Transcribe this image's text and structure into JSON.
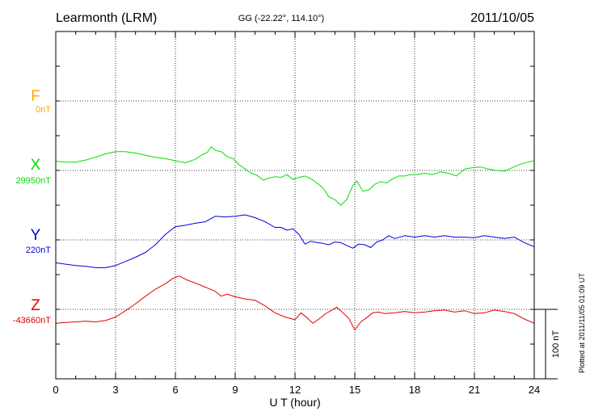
{
  "header": {
    "station": "Learmonth (LRM)",
    "coordinates": "GG (-22.22°, 114.10°)",
    "date": "2011/10/05"
  },
  "scale_bar_label": "100 nT",
  "plotted_note": "Plotted at 2011/11/05 01:09 UT",
  "chart_data": {
    "type": "line",
    "title": "",
    "xlabel": "U T (hour)",
    "ylabel": "",
    "xlim": [
      0,
      24
    ],
    "xticks": [
      0,
      3,
      6,
      9,
      12,
      15,
      18,
      21,
      24
    ],
    "xtick_labels": [
      "0",
      "3",
      "6",
      "9",
      "12",
      "15",
      "18",
      "21",
      "24"
    ],
    "grid": true,
    "nt_per_division": 100,
    "series": [
      {
        "name": "F",
        "baseline": "0nT",
        "color": "#ffa500",
        "baseline_nT": 0,
        "x": [],
        "values": []
      },
      {
        "name": "X",
        "baseline": "29950nT",
        "color": "#00e000",
        "baseline_nT": 29950,
        "x": [
          0,
          0.5,
          1,
          1.5,
          2,
          2.5,
          3,
          3.5,
          4,
          4.5,
          5,
          5.5,
          6,
          6.5,
          7,
          7.3,
          7.6,
          7.8,
          8,
          8.3,
          8.6,
          8.9,
          9.2,
          9.5,
          9.8,
          10.1,
          10.4,
          10.7,
          11,
          11.3,
          11.6,
          11.9,
          12.2,
          12.5,
          12.8,
          13.1,
          13.4,
          13.7,
          14,
          14.3,
          14.6,
          14.9,
          15.1,
          15.4,
          15.7,
          16,
          16.3,
          16.6,
          16.9,
          17.2,
          17.5,
          17.8,
          18.1,
          18.5,
          18.9,
          19.3,
          19.7,
          20.1,
          20.5,
          20.9,
          21.3,
          21.7,
          22.1,
          22.5,
          22.9,
          23.3,
          23.7,
          24
        ],
        "values": [
          13,
          12,
          12,
          15,
          19,
          24,
          27,
          27,
          25,
          22,
          19,
          17,
          14,
          11,
          16,
          22,
          26,
          34,
          29,
          27,
          20,
          17,
          8,
          2,
          -4,
          -7,
          -14,
          -11,
          -9,
          -10,
          -6,
          -13,
          -10,
          -8,
          -12,
          -18,
          -25,
          -38,
          -42,
          -50,
          -42,
          -22,
          -15,
          -30,
          -28,
          -20,
          -16,
          -18,
          -12,
          -8,
          -8,
          -6,
          -6,
          -4,
          -6,
          -2,
          -4,
          -8,
          2,
          4,
          5,
          2,
          0,
          -1,
          4,
          9,
          12,
          14
        ]
      },
      {
        "name": "Y",
        "baseline": "220nT",
        "color": "#0000d8",
        "baseline_nT": 220,
        "x": [
          0,
          0.5,
          1,
          1.5,
          2,
          2.5,
          3,
          3.5,
          4,
          4.5,
          5,
          5.5,
          6,
          6.5,
          7,
          7.5,
          8,
          8.5,
          9,
          9.5,
          10,
          10.5,
          11,
          11.3,
          11.6,
          11.9,
          12.2,
          12.5,
          12.8,
          13.1,
          13.4,
          13.7,
          14,
          14.3,
          14.6,
          14.9,
          15.2,
          15.5,
          15.8,
          16.1,
          16.4,
          16.7,
          17,
          17.5,
          18,
          18.5,
          19,
          19.5,
          20,
          20.5,
          21,
          21.5,
          22,
          22.5,
          23,
          23.5,
          24
        ],
        "values": [
          -33,
          -35,
          -37,
          -38,
          -40,
          -40,
          -37,
          -31,
          -25,
          -18,
          -7,
          8,
          19,
          21,
          24,
          26,
          34,
          33,
          34,
          36,
          32,
          26,
          18,
          18,
          14,
          16,
          8,
          -6,
          -2,
          -4,
          -5,
          -7,
          -3,
          -4,
          -8,
          -12,
          -6,
          -7,
          -11,
          -3,
          0,
          6,
          2,
          6,
          4,
          6,
          4,
          6,
          4,
          4,
          3,
          6,
          4,
          2,
          4,
          -4,
          -10
        ]
      },
      {
        "name": "Z",
        "baseline": "-43660nT",
        "color": "#e00000",
        "baseline_nT": -43660,
        "x": [
          0,
          0.5,
          1,
          1.5,
          2,
          2.5,
          3,
          3.5,
          4,
          4.5,
          5,
          5.5,
          5.9,
          6.2,
          6.6,
          7,
          7.5,
          8,
          8.3,
          8.6,
          9,
          9.5,
          10,
          10.5,
          11,
          11.5,
          12,
          12.3,
          12.6,
          12.9,
          13.2,
          13.5,
          13.8,
          14.1,
          14.4,
          14.7,
          15,
          15.3,
          15.6,
          15.9,
          16.2,
          16.5,
          17,
          17.5,
          18,
          18.5,
          19,
          19.5,
          20,
          20.5,
          21,
          21.5,
          22,
          22.5,
          23,
          23.5,
          24
        ],
        "values": [
          -20,
          -19,
          -18,
          -17,
          -18,
          -16,
          -11,
          -2,
          8,
          19,
          29,
          37,
          45,
          48,
          42,
          38,
          32,
          26,
          19,
          22,
          18,
          15,
          13,
          5,
          -5,
          -11,
          -15,
          -5,
          -12,
          -20,
          -14,
          -7,
          -2,
          3,
          -5,
          -13,
          -30,
          -18,
          -12,
          -5,
          -4,
          -6,
          -5,
          -3,
          -5,
          -4,
          -2,
          -1,
          -4,
          -2,
          -6,
          -5,
          -1,
          -3,
          -6,
          -14,
          -20
        ]
      }
    ]
  }
}
